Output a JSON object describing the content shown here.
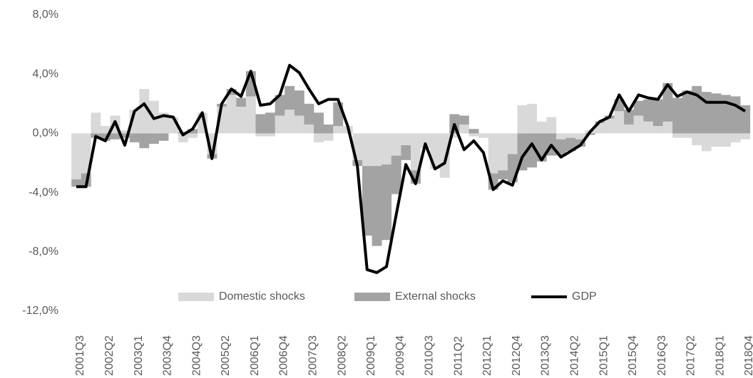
{
  "chart_data": {
    "type": "bar",
    "stacked": true,
    "legend": "bottom",
    "categories": [
      "2001Q3",
      null,
      null,
      "2002Q2",
      null,
      null,
      "2003Q1",
      null,
      null,
      "2003Q4",
      null,
      null,
      "2004Q3",
      null,
      null,
      "2005Q2",
      null,
      null,
      "2006Q1",
      null,
      null,
      "2006Q4",
      null,
      null,
      "2007Q3",
      null,
      null,
      "2008Q2",
      null,
      null,
      "2009Q1",
      null,
      null,
      "2009Q4",
      null,
      null,
      "2010Q3",
      null,
      null,
      "2011Q2",
      null,
      null,
      "2012Q1",
      null,
      null,
      "2012Q4",
      null,
      null,
      "2013Q3",
      null,
      null,
      "2014Q2",
      null,
      null,
      "2015Q1",
      null,
      null,
      "2015Q4",
      null,
      null,
      "2016Q3",
      null,
      null,
      "2017Q2",
      null,
      null,
      "2018Q1",
      null,
      null,
      "2018Q4"
    ],
    "series": [
      {
        "name": "Domestic shocks",
        "color": "#d9d9d9",
        "values": [
          -3.1,
          -2.7,
          1.4,
          0.5,
          1.2,
          0.2,
          1.6,
          3.0,
          2.2,
          1.4,
          1.1,
          -0.6,
          -0.3,
          1.4,
          -1.4,
          1.8,
          2.6,
          1.8,
          2.5,
          -0.2,
          -0.2,
          1.2,
          1.6,
          1.2,
          0.6,
          -0.6,
          -0.5,
          0.5,
          0.5,
          -1.8,
          -2.2,
          -2.2,
          -2.1,
          -1.5,
          -0.8,
          -2.5,
          -1.0,
          -2.4,
          -3.0,
          -0.3,
          0.6,
          -0.2,
          -0.3,
          -2.7,
          -2.5,
          -1.4,
          1.9,
          2.0,
          0.8,
          1.1,
          -0.4,
          -0.3,
          -0.4,
          0.2,
          0.7,
          1.0,
          1.5,
          0.6,
          1.2,
          0.8,
          0.5,
          0.8,
          -0.3,
          -0.3,
          -0.8,
          -1.2,
          -0.9,
          -0.9,
          -0.6,
          -0.4
        ]
      },
      {
        "name": "External shocks",
        "color": "#a3a3a3",
        "values": [
          -0.5,
          -0.9,
          -0.3,
          -0.5,
          -0.4,
          -0.3,
          -0.6,
          -1.0,
          -0.7,
          -0.5,
          0.0,
          0.1,
          0.3,
          0.0,
          -0.3,
          0.2,
          0.4,
          0.6,
          1.7,
          1.3,
          1.4,
          1.4,
          1.6,
          1.7,
          1.4,
          1.4,
          0.6,
          1.6,
          0.0,
          -0.4,
          -4.7,
          -5.4,
          -5.1,
          -2.6,
          -1.0,
          -0.9,
          0.0,
          0.0,
          0.0,
          1.3,
          0.6,
          0.3,
          0.0,
          -1.1,
          -0.6,
          -1.9,
          -2.5,
          -2.3,
          -1.9,
          -1.5,
          -1.1,
          -0.9,
          -0.5,
          -0.1,
          0.1,
          0.2,
          0.8,
          1.0,
          1.0,
          1.5,
          1.8,
          2.6,
          2.4,
          2.9,
          3.2,
          2.8,
          2.7,
          2.6,
          2.5,
          1.9
        ]
      },
      {
        "name": "GDP",
        "type": "line",
        "color": "#000000",
        "values": [
          -3.6,
          -3.6,
          -0.2,
          -0.5,
          0.8,
          -0.8,
          1.5,
          2.0,
          1.0,
          1.2,
          1.1,
          -0.1,
          0.3,
          1.4,
          -1.7,
          2.0,
          3.0,
          2.5,
          4.2,
          1.9,
          2.0,
          2.6,
          4.6,
          4.1,
          3.0,
          2.0,
          2.3,
          2.3,
          0.5,
          -2.2,
          -9.2,
          -9.4,
          -9.0,
          -5.5,
          -2.1,
          -3.4,
          -0.7,
          -2.4,
          -2.0,
          0.6,
          -1.1,
          -0.5,
          -1.3,
          -3.8,
          -3.2,
          -3.5,
          -1.6,
          -0.7,
          -1.8,
          -0.8,
          -1.6,
          -1.2,
          -0.8,
          0.1,
          0.8,
          1.1,
          2.6,
          1.5,
          2.6,
          2.4,
          2.3,
          3.3,
          2.5,
          2.8,
          2.6,
          2.1,
          2.1,
          2.1,
          1.9,
          1.5
        ]
      }
    ],
    "ylim": [
      -12,
      8
    ],
    "yticks": [
      {
        "value": -12,
        "label": "-12,0%"
      },
      {
        "value": -8,
        "label": "-8,0%"
      },
      {
        "value": -4,
        "label": "-4,0%"
      },
      {
        "value": 0,
        "label": "0,0%"
      },
      {
        "value": 4,
        "label": "4,0%"
      },
      {
        "value": 8,
        "label": "8,0%"
      }
    ]
  }
}
